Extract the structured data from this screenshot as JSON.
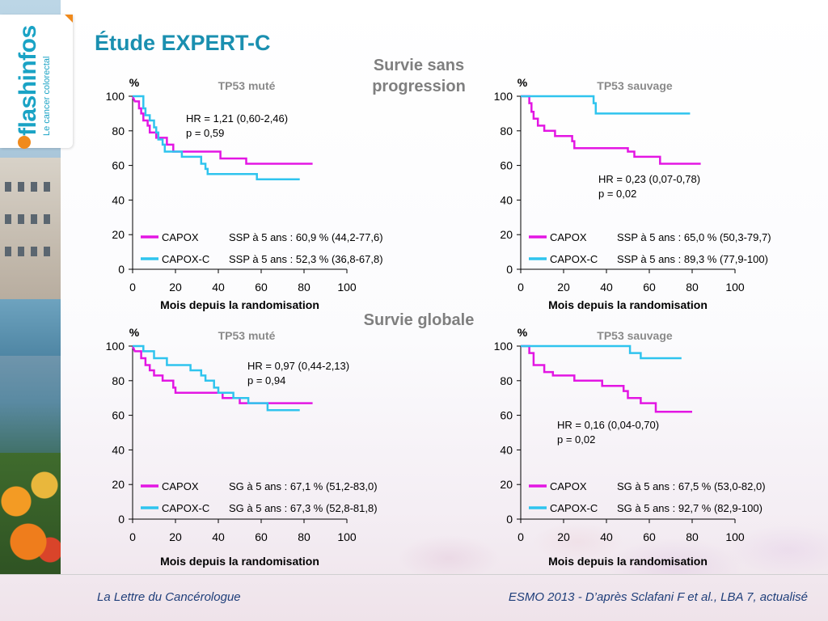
{
  "slide": {
    "title": "Étude EXPERT-C",
    "section_pfs": "Survie sans progression",
    "section_os": "Survie globale",
    "footer_left": "La Lettre du Cancérologue",
    "footer_right": "ESMO 2013 - D’après Sclafani F et al., LBA 7, actualisé"
  },
  "logo": {
    "name": "flashinfos",
    "tagline": "Le cancer colorectal"
  },
  "colors": {
    "capox": "#e316e3",
    "capox_c": "#2fc4ee",
    "title": "#1a8fb0",
    "section": "#7f7f7f",
    "footer": "#1f3f7a"
  },
  "chart_data": [
    {
      "type": "line",
      "title": "TP53 muté",
      "ylabel": "%",
      "xlabel": "Mois depuis la randomisation",
      "xlim": [
        0,
        100
      ],
      "ylim": [
        0,
        100
      ],
      "xticks": [
        "0",
        "20",
        "40",
        "60",
        "80",
        "100"
      ],
      "yticks": [
        "0",
        "20",
        "40",
        "60",
        "80",
        "100"
      ],
      "annotation": [
        "HR = 1,21 (0,60-2,46)",
        "p = 0,59"
      ],
      "series": [
        {
          "name": "CAPOX",
          "key": "capox",
          "legend_value": "SSP à 5 ans : 60,9 % (44,2-77,6)",
          "points": [
            [
              0,
              100
            ],
            [
              1,
              97
            ],
            [
              3,
              97
            ],
            [
              3,
              93
            ],
            [
              4,
              93
            ],
            [
              4,
              90
            ],
            [
              5,
              90
            ],
            [
              5,
              86
            ],
            [
              7,
              86
            ],
            [
              7,
              83
            ],
            [
              8,
              83
            ],
            [
              8,
              79
            ],
            [
              11,
              79
            ],
            [
              11,
              76
            ],
            [
              16,
              76
            ],
            [
              16,
              72
            ],
            [
              19,
              72
            ],
            [
              19,
              68
            ],
            [
              41,
              68
            ],
            [
              41,
              64
            ],
            [
              53,
              64
            ],
            [
              53,
              61
            ],
            [
              84,
              61
            ]
          ]
        },
        {
          "name": "CAPOX-C",
          "key": "capox_c",
          "legend_value": "SSP à 5 ans : 52,3 % (36,8-67,8)",
          "points": [
            [
              0,
              100
            ],
            [
              5,
              100
            ],
            [
              5,
              93
            ],
            [
              6,
              93
            ],
            [
              6,
              89
            ],
            [
              8,
              89
            ],
            [
              8,
              86
            ],
            [
              10,
              86
            ],
            [
              10,
              82
            ],
            [
              11,
              82
            ],
            [
              11,
              79
            ],
            [
              12,
              79
            ],
            [
              12,
              75
            ],
            [
              14,
              75
            ],
            [
              14,
              72
            ],
            [
              15,
              72
            ],
            [
              15,
              68
            ],
            [
              23,
              68
            ],
            [
              23,
              65
            ],
            [
              32,
              65
            ],
            [
              32,
              61
            ],
            [
              34,
              61
            ],
            [
              34,
              58
            ],
            [
              35,
              58
            ],
            [
              35,
              55
            ],
            [
              58,
              55
            ],
            [
              58,
              52
            ],
            [
              78,
              52
            ]
          ]
        }
      ]
    },
    {
      "type": "line",
      "title": "TP53 sauvage",
      "ylabel": "%",
      "xlabel": "Mois depuis la randomisation",
      "xlim": [
        0,
        100
      ],
      "ylim": [
        0,
        100
      ],
      "xticks": [
        "0",
        "20",
        "40",
        "60",
        "80",
        "100"
      ],
      "yticks": [
        "0",
        "20",
        "40",
        "60",
        "80",
        "100"
      ],
      "annotation": [
        "HR = 0,23 (0,07-0,78)",
        "p = 0,02"
      ],
      "series": [
        {
          "name": "CAPOX",
          "key": "capox",
          "legend_value": "SSP à 5 ans : 65,0 % (50,3-79,7)",
          "points": [
            [
              0,
              100
            ],
            [
              4,
              100
            ],
            [
              4,
              96
            ],
            [
              5,
              96
            ],
            [
              5,
              91
            ],
            [
              6,
              91
            ],
            [
              6,
              87
            ],
            [
              8,
              87
            ],
            [
              8,
              83
            ],
            [
              11,
              83
            ],
            [
              11,
              80
            ],
            [
              16,
              80
            ],
            [
              16,
              77
            ],
            [
              24,
              77
            ],
            [
              24,
              74
            ],
            [
              25,
              74
            ],
            [
              25,
              70
            ],
            [
              50,
              70
            ],
            [
              50,
              68
            ],
            [
              53,
              68
            ],
            [
              53,
              65
            ],
            [
              65,
              65
            ],
            [
              65,
              61
            ],
            [
              84,
              61
            ]
          ]
        },
        {
          "name": "CAPOX-C",
          "key": "capox_c",
          "legend_value": "SSP à 5 ans : 89,3 % (77,9-100)",
          "points": [
            [
              0,
              100
            ],
            [
              34,
              100
            ],
            [
              34,
              96
            ],
            [
              35,
              96
            ],
            [
              35,
              90
            ],
            [
              79,
              90
            ]
          ]
        }
      ]
    },
    {
      "type": "line",
      "title": "TP53 muté",
      "ylabel": "%",
      "xlabel": "Mois depuis la randomisation",
      "xlim": [
        0,
        100
      ],
      "ylim": [
        0,
        100
      ],
      "xticks": [
        "0",
        "20",
        "40",
        "60",
        "80",
        "100"
      ],
      "yticks": [
        "0",
        "20",
        "40",
        "60",
        "80",
        "100"
      ],
      "annotation": [
        "HR = 0,97 (0,44-2,13)",
        "p = 0,94"
      ],
      "series": [
        {
          "name": "CAPOX",
          "key": "capox",
          "legend_value": "SG à 5 ans : 67,1 % (51,2-83,0)",
          "points": [
            [
              0,
              100
            ],
            [
              1,
              97
            ],
            [
              4,
              97
            ],
            [
              4,
              93
            ],
            [
              6,
              93
            ],
            [
              6,
              89
            ],
            [
              8,
              89
            ],
            [
              8,
              86
            ],
            [
              10,
              86
            ],
            [
              10,
              83
            ],
            [
              14,
              83
            ],
            [
              14,
              80
            ],
            [
              19,
              80
            ],
            [
              19,
              76
            ],
            [
              20,
              76
            ],
            [
              20,
              73
            ],
            [
              42,
              73
            ],
            [
              42,
              70
            ],
            [
              50,
              70
            ],
            [
              50,
              67
            ],
            [
              84,
              67
            ]
          ]
        },
        {
          "name": "CAPOX-C",
          "key": "capox_c",
          "legend_value": "SG à 5 ans : 67,3 % (52,8-81,8)",
          "points": [
            [
              0,
              100
            ],
            [
              5,
              100
            ],
            [
              5,
              97
            ],
            [
              10,
              97
            ],
            [
              10,
              93
            ],
            [
              16,
              93
            ],
            [
              16,
              89
            ],
            [
              27,
              89
            ],
            [
              27,
              86
            ],
            [
              32,
              86
            ],
            [
              32,
              83
            ],
            [
              34,
              83
            ],
            [
              34,
              80
            ],
            [
              38,
              80
            ],
            [
              38,
              76
            ],
            [
              40,
              76
            ],
            [
              40,
              73
            ],
            [
              47,
              73
            ],
            [
              47,
              70
            ],
            [
              54,
              70
            ],
            [
              54,
              67
            ],
            [
              63,
              67
            ],
            [
              63,
              63
            ],
            [
              78,
              63
            ]
          ]
        }
      ]
    },
    {
      "type": "line",
      "title": "TP53 sauvage",
      "ylabel": "%",
      "xlabel": "Mois depuis la randomisation",
      "xlim": [
        0,
        100
      ],
      "ylim": [
        0,
        100
      ],
      "xticks": [
        "0",
        "20",
        "40",
        "60",
        "80",
        "100"
      ],
      "yticks": [
        "0",
        "20",
        "40",
        "60",
        "80",
        "100"
      ],
      "annotation": [
        "HR = 0,16 (0,04-0,70)",
        "p = 0,02"
      ],
      "series": [
        {
          "name": "CAPOX",
          "key": "capox",
          "legend_value": "SG à 5 ans : 67,5 % (53,0-82,0)",
          "points": [
            [
              0,
              100
            ],
            [
              4,
              100
            ],
            [
              4,
              96
            ],
            [
              6,
              96
            ],
            [
              6,
              89
            ],
            [
              11,
              89
            ],
            [
              11,
              85
            ],
            [
              15,
              85
            ],
            [
              15,
              83
            ],
            [
              25,
              83
            ],
            [
              25,
              80
            ],
            [
              38,
              80
            ],
            [
              38,
              77
            ],
            [
              48,
              77
            ],
            [
              48,
              74
            ],
            [
              50,
              74
            ],
            [
              50,
              70
            ],
            [
              56,
              70
            ],
            [
              56,
              67
            ],
            [
              63,
              67
            ],
            [
              63,
              62
            ],
            [
              80,
              62
            ]
          ]
        },
        {
          "name": "CAPOX-C",
          "key": "capox_c",
          "legend_value": "SG à 5 ans : 92,7 % (82,9-100)",
          "points": [
            [
              0,
              100
            ],
            [
              51,
              100
            ],
            [
              51,
              96
            ],
            [
              56,
              96
            ],
            [
              56,
              93
            ],
            [
              75,
              93
            ]
          ]
        }
      ]
    }
  ]
}
